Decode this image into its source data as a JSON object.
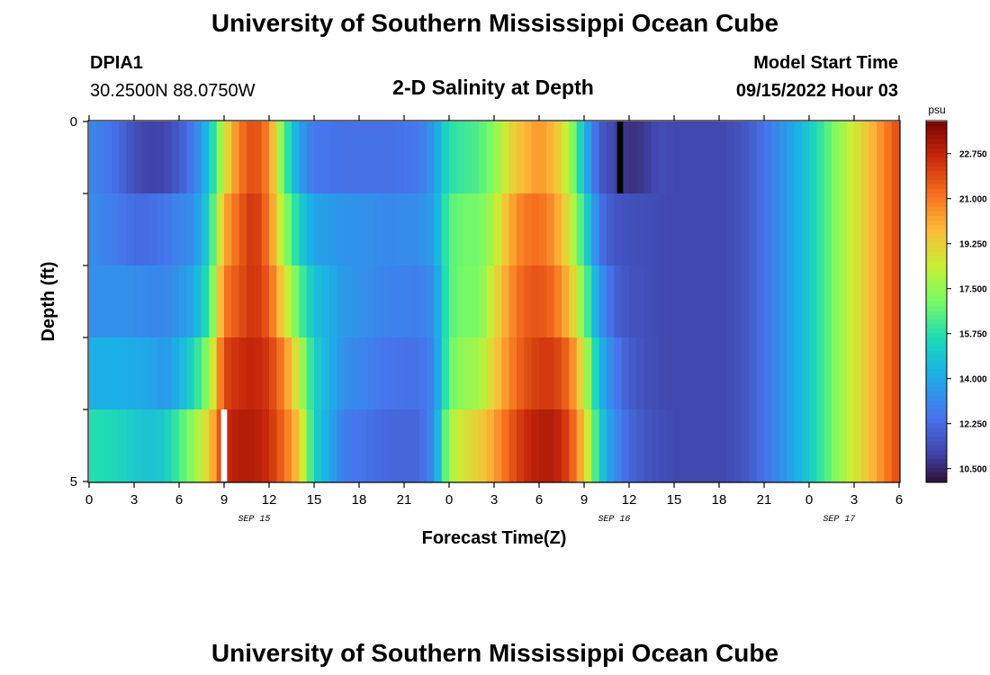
{
  "header": {
    "title": "University of Southern Mississippi Ocean Cube",
    "station": "DPIA1",
    "coords": "30.2500N  88.0750W",
    "subtitle": "2-D Salinity at Depth",
    "model_label": "Model Start Time",
    "model_time": "09/15/2022 Hour 03"
  },
  "footer": {
    "title": "University of Southern Mississippi Ocean Cube"
  },
  "colorbar": {
    "unit": "psu",
    "ticks": [
      "22.750",
      "21.000",
      "19.250",
      "17.500",
      "15.750",
      "14.000",
      "12.250",
      "10.500"
    ],
    "min": 10.0,
    "max": 24.0
  },
  "chart_data": {
    "type": "heatmap",
    "title": "2-D Salinity at Depth",
    "xlabel": "Forecast Time(Z)",
    "ylabel": "Depth (ft)",
    "x_tick_labels": [
      "0",
      "3",
      "6",
      "9",
      "12",
      "15",
      "18",
      "21",
      "0",
      "3",
      "6",
      "9",
      "12",
      "15",
      "18",
      "21",
      "0",
      "3",
      "6"
    ],
    "date_labels": [
      {
        "text": "SEP 15",
        "at_hour": 11
      },
      {
        "text": "SEP 16",
        "at_hour": 35
      },
      {
        "text": "SEP 17",
        "at_hour": 50
      }
    ],
    "y_tick_labels": [
      "0",
      "5"
    ],
    "ylim": [
      0,
      5
    ],
    "time_range_hours": [
      0,
      54
    ],
    "depth_rows": 5,
    "time_anchors": [
      0,
      2,
      3,
      4,
      5,
      6,
      7,
      8,
      9,
      10,
      11,
      12,
      13,
      14,
      15,
      17,
      20,
      22,
      23,
      24,
      25,
      26,
      27,
      28,
      29,
      30,
      31,
      32,
      33,
      34,
      35,
      36,
      37,
      38,
      39,
      40,
      41,
      42,
      43,
      44,
      45,
      46,
      47,
      48,
      49,
      50,
      51,
      52,
      53,
      54
    ],
    "salinity_psu": [
      [
        12.8,
        12.2,
        11.0,
        10.3,
        10.3,
        11.0,
        12.5,
        14.5,
        17.5,
        20.5,
        21.5,
        20.5,
        16.0,
        13.0,
        12.0,
        11.6,
        11.6,
        11.8,
        13.2,
        15.0,
        15.4,
        16.0,
        17.0,
        18.5,
        19.0,
        20.0,
        19.0,
        17.0,
        13.5,
        11.5,
        10.6,
        9.8,
        10.3,
        11.4,
        11.3,
        11.2,
        11.2,
        11.2,
        11.4,
        11.8,
        12.4,
        13.2,
        14.0,
        15.0,
        16.2,
        17.5,
        18.6,
        19.6,
        20.8,
        22.0
      ],
      [
        13.5,
        12.2,
        11.8,
        11.8,
        12.0,
        12.5,
        13.0,
        15.0,
        19.5,
        21.5,
        22.5,
        21.0,
        17.0,
        14.5,
        13.2,
        13.2,
        13.2,
        13.4,
        14.0,
        16.5,
        16.8,
        16.8,
        17.5,
        19.5,
        20.5,
        21.0,
        20.5,
        19.0,
        15.5,
        12.0,
        11.7,
        11.5,
        11.4,
        11.3,
        11.2,
        11.2,
        11.2,
        11.2,
        11.4,
        11.8,
        12.4,
        13.2,
        14.0,
        15.0,
        16.2,
        17.5,
        18.6,
        19.6,
        20.8,
        22.0
      ],
      [
        13.0,
        13.0,
        12.8,
        12.8,
        13.0,
        13.4,
        13.6,
        15.5,
        20.5,
        21.5,
        22.5,
        21.0,
        18.0,
        16.0,
        14.5,
        13.6,
        13.0,
        13.0,
        13.5,
        16.5,
        17.0,
        17.0,
        18.5,
        20.5,
        21.5,
        21.5,
        20.5,
        18.5,
        16.0,
        13.0,
        11.6,
        11.4,
        11.4,
        11.3,
        11.2,
        11.2,
        11.2,
        11.2,
        11.4,
        11.8,
        12.4,
        13.2,
        14.0,
        15.0,
        16.2,
        17.5,
        18.6,
        19.6,
        20.8,
        22.0
      ],
      [
        13.5,
        13.6,
        13.6,
        13.4,
        13.0,
        13.4,
        14.5,
        16.5,
        21.5,
        22.0,
        22.5,
        22.0,
        20.0,
        17.0,
        15.0,
        13.5,
        12.8,
        12.6,
        13.0,
        16.5,
        17.0,
        17.0,
        19.0,
        20.5,
        21.5,
        22.0,
        22.0,
        21.0,
        18.0,
        14.0,
        12.5,
        11.6,
        11.5,
        11.3,
        11.2,
        11.2,
        11.2,
        11.2,
        11.4,
        11.8,
        12.4,
        13.2,
        14.0,
        15.0,
        16.2,
        17.5,
        18.6,
        19.6,
        20.8,
        22.0
      ],
      [
        15.0,
        14.8,
        14.5,
        14.5,
        14.0,
        15.0,
        16.5,
        18.5,
        22.5,
        23.0,
        23.0,
        22.5,
        21.5,
        19.5,
        15.5,
        13.0,
        12.2,
        12.2,
        13.0,
        17.0,
        18.0,
        18.5,
        19.5,
        21.0,
        22.0,
        22.5,
        22.5,
        21.5,
        19.0,
        15.0,
        13.0,
        12.0,
        11.5,
        11.3,
        11.2,
        11.2,
        11.2,
        11.2,
        11.4,
        11.8,
        12.4,
        13.2,
        14.0,
        15.0,
        16.2,
        17.5,
        18.6,
        19.6,
        20.8,
        22.0
      ],
      [
        16.5,
        16.0,
        15.5,
        15.0,
        16.0,
        17.5,
        18.5,
        20.0,
        22.5,
        23.0,
        23.0,
        22.5,
        21.0,
        19.5,
        15.0,
        12.5,
        12.0,
        12.0,
        13.5,
        18.5,
        19.5,
        20.0,
        21.0,
        22.0,
        23.0,
        23.5,
        23.5,
        22.5,
        20.0,
        15.5,
        13.5,
        12.2,
        11.8,
        11.5,
        11.3,
        11.2,
        11.2,
        11.2,
        11.4,
        11.8,
        12.4,
        13.2,
        14.0,
        15.0,
        16.2,
        17.5,
        18.6,
        19.6,
        20.8,
        22.0
      ]
    ],
    "depth_levels_ft": [
      0,
      1,
      2,
      3,
      4,
      5
    ],
    "gaps": [
      {
        "depth_row": 5,
        "from_hour": 8.8,
        "to_hour": 9.2
      },
      {
        "depth_row": 0,
        "from_hour": 35.2,
        "to_hour": 35.6
      }
    ]
  }
}
